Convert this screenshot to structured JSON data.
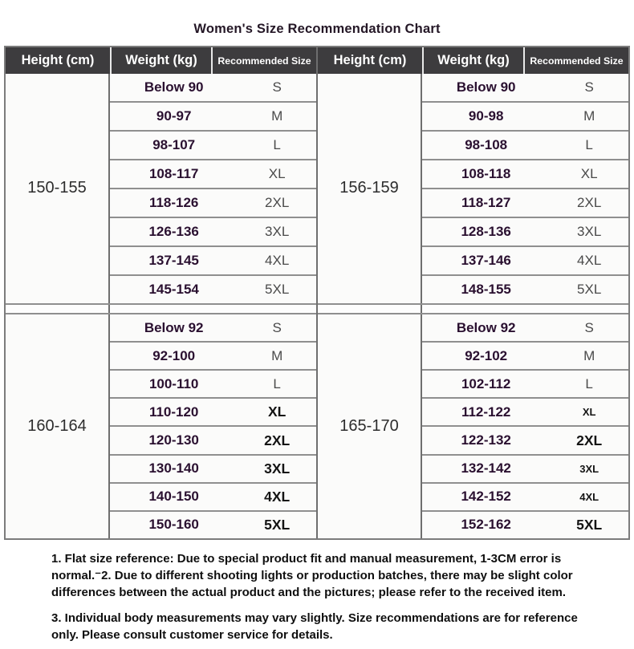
{
  "chart_data": {
    "type": "table",
    "title": "Women's Size Recommendation Chart",
    "columns": [
      "Height (cm)",
      "Weight (kg)",
      "Recommended Size"
    ],
    "layout": "two side-by-side tables, each with two stacked height sections",
    "sections": [
      {
        "height_cm": "150-155",
        "rows": [
          {
            "weight": "Below 90",
            "size": "S",
            "style": "plain"
          },
          {
            "weight": "90-97",
            "size": "M",
            "style": "plain"
          },
          {
            "weight": "98-107",
            "size": "L",
            "style": "plain"
          },
          {
            "weight": "108-117",
            "size": "XL",
            "style": "plain"
          },
          {
            "weight": "118-126",
            "size": "2XL",
            "style": "plain"
          },
          {
            "weight": "126-136",
            "size": "3XL",
            "style": "plain"
          },
          {
            "weight": "137-145",
            "size": "4XL",
            "style": "plain"
          },
          {
            "weight": "145-154",
            "size": "5XL",
            "style": "plain"
          }
        ]
      },
      {
        "height_cm": "156-159",
        "rows": [
          {
            "weight": "Below 90",
            "size": "S",
            "style": "plain"
          },
          {
            "weight": "90-98",
            "size": "M",
            "style": "plain"
          },
          {
            "weight": "98-108",
            "size": "L",
            "style": "plain"
          },
          {
            "weight": "108-118",
            "size": "XL",
            "style": "plain"
          },
          {
            "weight": "118-127",
            "size": "2XL",
            "style": "plain"
          },
          {
            "weight": "128-136",
            "size": "3XL",
            "style": "plain"
          },
          {
            "weight": "137-146",
            "size": "4XL",
            "style": "plain"
          },
          {
            "weight": "148-155",
            "size": "5XL",
            "style": "plain"
          }
        ]
      },
      {
        "height_cm": "160-164",
        "rows": [
          {
            "weight": "Below 92",
            "size": "S",
            "style": "plain"
          },
          {
            "weight": "92-100",
            "size": "M",
            "style": "plain"
          },
          {
            "weight": "100-110",
            "size": "L",
            "style": "plain"
          },
          {
            "weight": "110-120",
            "size": "XL",
            "style": "bold"
          },
          {
            "weight": "120-130",
            "size": "2XL",
            "style": "bold"
          },
          {
            "weight": "130-140",
            "size": "3XL",
            "style": "bold"
          },
          {
            "weight": "140-150",
            "size": "4XL",
            "style": "bold"
          },
          {
            "weight": "150-160",
            "size": "5XL",
            "style": "bold"
          }
        ]
      },
      {
        "height_cm": "165-170",
        "rows": [
          {
            "weight": "Below 92",
            "size": "S",
            "style": "plain"
          },
          {
            "weight": "92-102",
            "size": "M",
            "style": "plain"
          },
          {
            "weight": "102-112",
            "size": "L",
            "style": "plain"
          },
          {
            "weight": "112-122",
            "size": "XL",
            "style": "bold-small"
          },
          {
            "weight": "122-132",
            "size": "2XL",
            "style": "bold"
          },
          {
            "weight": "132-142",
            "size": "3XL",
            "style": "bold-small"
          },
          {
            "weight": "142-152",
            "size": "4XL",
            "style": "bold-small"
          },
          {
            "weight": "152-162",
            "size": "5XL",
            "style": "bold"
          }
        ]
      }
    ]
  },
  "notes": {
    "note_1": "1. Flat size reference: Due to special product fit and manual measurement, 1-3CM error is normal.⁻2. Due to different shooting lights or production batches, there may be slight color differences between the actual product and the pictures; please refer to the received item.",
    "note_2": "3. Individual body measurements may vary slightly. Size recommendations are for reference only. Please consult customer service for details."
  },
  "colors": {
    "header_bg": "#3d3c3e",
    "header_text": "#ffffff",
    "weight_text": "#2a1030",
    "plain_size_text": "#4a4a4a",
    "bold_size_text": "#141414",
    "border": "#8f8f8f"
  }
}
